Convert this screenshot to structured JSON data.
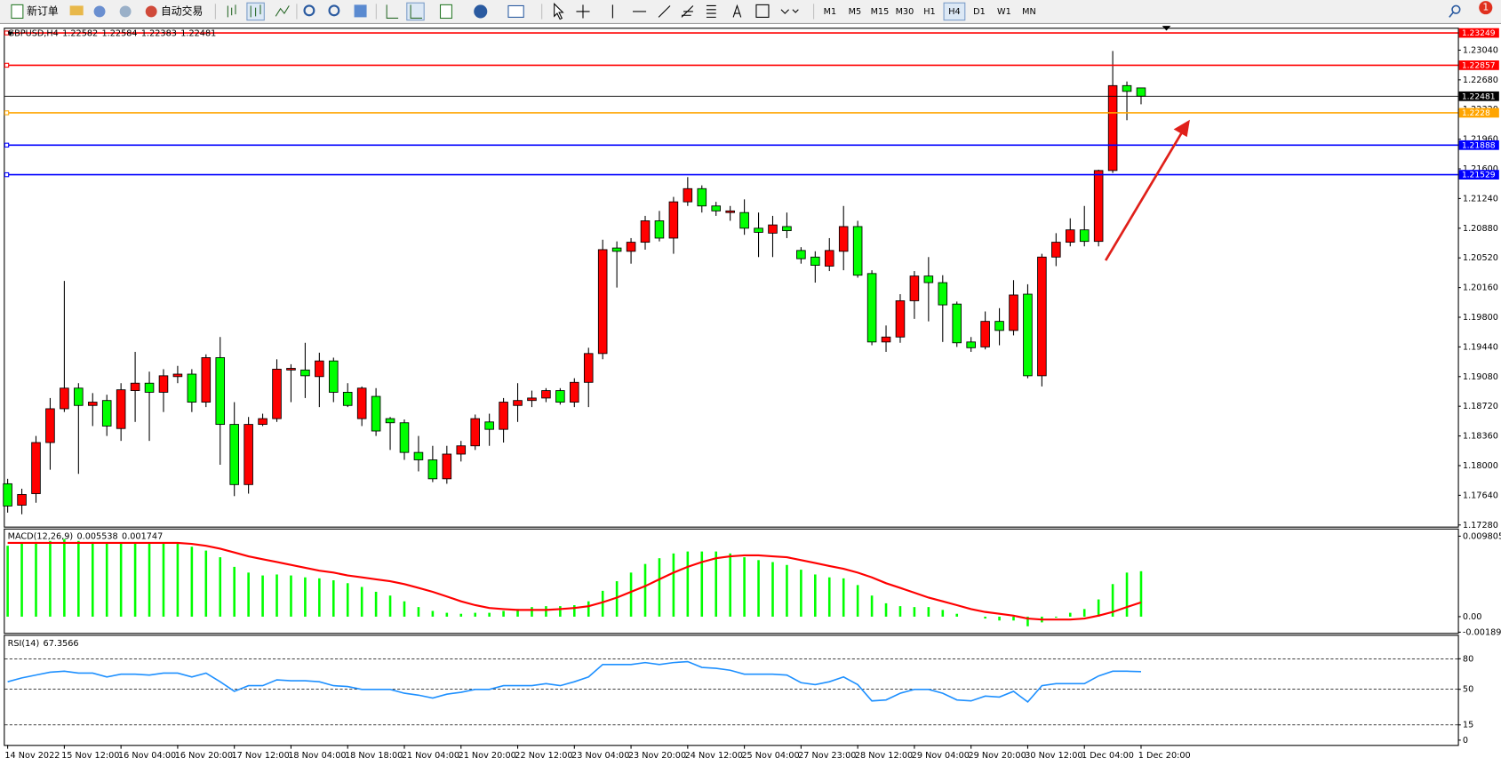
{
  "toolbar": {
    "buttons": [
      "新订单",
      "自动交易"
    ],
    "timeframes": [
      "M1",
      "M5",
      "M15",
      "M30",
      "H1",
      "H4",
      "D1",
      "W1",
      "MN"
    ],
    "active_timeframe": "H4",
    "notifications": 1
  },
  "chart_data": [
    {
      "type": "candlestick",
      "title": "GBPUSD,H4",
      "categories": [
        "14 Nov 2022",
        null,
        null,
        null,
        "15 Nov 12:00",
        null,
        null,
        null,
        "16 Nov 04:00",
        null,
        null,
        null,
        "16 Nov 20:00",
        null,
        null,
        null,
        "17 Nov 12:00",
        null,
        null,
        null,
        "18 Nov 04:00",
        null,
        null,
        null,
        "18 Nov 18:00",
        null,
        null,
        null,
        "21 Nov 04:00",
        null,
        null,
        null,
        "21 Nov 20:00",
        null,
        null,
        null,
        "22 Nov 12:00",
        null,
        null,
        null,
        "23 Nov 04:00",
        null,
        null,
        null,
        "23 Nov 20:00",
        null,
        null,
        null,
        "24 Nov 12:00",
        null,
        null,
        null,
        "25 Nov 04:00",
        null,
        null,
        null,
        "27 Nov 23:00",
        null,
        null,
        null,
        "28 Nov 12:00",
        null,
        null,
        null,
        "29 Nov 04:00",
        null,
        null,
        null,
        "29 Nov 20:00",
        null,
        null,
        null,
        "30 Nov 12:00",
        null,
        null,
        null,
        "1 Dec 04:00",
        null,
        null,
        null,
        "1 Dec 20:00"
      ],
      "open": [
        1.1778,
        1.1752,
        1.1766,
        1.1828,
        1.1869,
        1.1894,
        1.1873,
        1.1879,
        1.1845,
        1.1891,
        1.19,
        1.1889,
        1.1908,
        1.1911,
        1.1877,
        1.1931,
        1.185,
        1.1777,
        1.185,
        1.1857,
        1.1916,
        1.1916,
        1.1908,
        1.1927,
        1.1889,
        1.1857,
        1.1884,
        1.1857,
        1.1852,
        1.1816,
        1.1807,
        1.1784,
        1.1814,
        1.1824,
        1.1853,
        1.1844,
        1.1873,
        1.1879,
        1.1882,
        1.1891,
        1.1877,
        1.1901,
        1.1936,
        1.2064,
        1.206,
        1.2071,
        1.2097,
        1.2076,
        1.212,
        1.2136,
        1.2115,
        1.2107,
        1.2107,
        1.2088,
        1.2082,
        1.209,
        1.2061,
        1.2053,
        1.2042,
        1.206,
        1.209,
        1.2033,
        1.195,
        1.1956,
        1.2,
        1.203,
        1.2022,
        1.1996,
        1.195,
        1.1944,
        1.1975,
        1.1964,
        1.2008,
        1.1909,
        1.2053,
        1.2071,
        1.2086,
        1.2072,
        1.2158,
        1.2261,
        1.22582
      ],
      "high": [
        1.1784,
        1.1772,
        1.1836,
        1.1882,
        1.2024,
        1.19,
        1.1888,
        1.1886,
        1.19,
        1.1938,
        1.1914,
        1.1917,
        1.1921,
        1.1917,
        1.1935,
        1.1956,
        1.1877,
        1.1859,
        1.1863,
        1.1929,
        1.1923,
        1.1949,
        1.1937,
        1.1931,
        1.19,
        1.1896,
        1.1894,
        1.1859,
        1.1856,
        1.1836,
        1.1824,
        1.1824,
        1.183,
        1.1862,
        1.1863,
        1.1882,
        1.19,
        1.1891,
        1.1894,
        1.1894,
        1.1906,
        1.1943,
        1.2074,
        1.2072,
        1.2076,
        1.2103,
        1.2109,
        1.2126,
        1.215,
        1.214,
        1.212,
        1.2115,
        1.2123,
        1.2107,
        1.2103,
        1.2107,
        1.2065,
        1.206,
        1.2076,
        1.2115,
        1.2097,
        1.2037,
        1.197,
        1.2008,
        1.2036,
        1.2053,
        1.2031,
        1.1999,
        1.1956,
        1.1987,
        1.1991,
        1.2025,
        1.202,
        1.2057,
        1.2082,
        1.21,
        1.2115,
        1.2159,
        1.2303,
        1.2266,
        1.22584
      ],
      "low": [
        1.1743,
        1.1741,
        1.1755,
        1.1795,
        1.1865,
        1.179,
        1.1848,
        1.1836,
        1.183,
        1.1853,
        1.183,
        1.1865,
        1.19,
        1.1865,
        1.1871,
        1.1801,
        1.1763,
        1.1766,
        1.1848,
        1.1853,
        1.1877,
        1.1882,
        1.1871,
        1.1877,
        1.1871,
        1.1848,
        1.1836,
        1.1819,
        1.1807,
        1.1793,
        1.178,
        1.1778,
        1.1805,
        1.1819,
        1.1824,
        1.1828,
        1.1853,
        1.1871,
        1.1877,
        1.1874,
        1.1871,
        1.1871,
        1.1929,
        1.2016,
        1.2045,
        1.2062,
        1.2072,
        1.2057,
        1.2115,
        1.2107,
        1.2103,
        1.2097,
        1.208,
        1.2053,
        1.2053,
        1.2076,
        1.2045,
        1.2022,
        1.2036,
        1.2037,
        1.2028,
        1.1946,
        1.1938,
        1.1949,
        1.1978,
        1.1975,
        1.195,
        1.1944,
        1.1938,
        1.1941,
        1.1946,
        1.1958,
        1.1906,
        1.1896,
        1.2042,
        1.2066,
        1.2066,
        1.2066,
        1.2155,
        1.2219,
        1.22383
      ],
      "close": [
        1.1751,
        1.1765,
        1.1828,
        1.1869,
        1.1894,
        1.1873,
        1.1877,
        1.1848,
        1.1892,
        1.19,
        1.1889,
        1.1909,
        1.1911,
        1.1877,
        1.1931,
        1.185,
        1.1777,
        1.185,
        1.1857,
        1.1917,
        1.1918,
        1.1909,
        1.1927,
        1.1889,
        1.1873,
        1.1894,
        1.1842,
        1.1852,
        1.1816,
        1.1807,
        1.1784,
        1.1814,
        1.1824,
        1.1857,
        1.1844,
        1.1877,
        1.1879,
        1.1882,
        1.1891,
        1.1877,
        1.1901,
        1.1936,
        1.2062,
        1.206,
        1.2071,
        1.2097,
        1.2076,
        1.212,
        1.2136,
        1.2115,
        1.2109,
        1.2109,
        1.2088,
        1.2083,
        1.2092,
        1.2085,
        1.2051,
        1.2043,
        1.2061,
        1.209,
        1.2031,
        1.195,
        1.1956,
        1.2,
        1.203,
        1.2022,
        1.1995,
        1.1949,
        1.1943,
        1.1975,
        1.1964,
        1.2007,
        1.1909,
        1.2053,
        1.2071,
        1.2086,
        1.2072,
        1.2158,
        1.2261,
        1.2254,
        1.22481
      ],
      "up_color": "#ff0000",
      "down_color": "#00ff00",
      "bid_line_color": "#000000",
      "price_lines": [
        {
          "value": 1.23249,
          "color": "#ff0000"
        },
        {
          "value": 1.22857,
          "color": "#ff0000"
        },
        {
          "value": 1.2228,
          "color": "#ffa500"
        },
        {
          "value": 1.21888,
          "color": "#0000ff"
        },
        {
          "value": 1.21529,
          "color": "#0000ff"
        }
      ],
      "ylim": [
        1.1726,
        1.233
      ],
      "yticks": [
        {
          "value": 1.1728,
          "label": "1.17280"
        },
        {
          "value": 1.1764,
          "label": "1.17640"
        },
        {
          "value": 1.18,
          "label": "1.18000"
        },
        {
          "value": 1.1836,
          "label": "1.18360"
        },
        {
          "value": 1.1872,
          "label": "1.18720"
        },
        {
          "value": 1.1908,
          "label": "1.19080"
        },
        {
          "value": 1.1944,
          "label": "1.19440"
        },
        {
          "value": 1.198,
          "label": "1.19800"
        },
        {
          "value": 1.2016,
          "label": "1.20160"
        },
        {
          "value": 1.2052,
          "label": "1.20520"
        },
        {
          "value": 1.2088,
          "label": "1.20880"
        },
        {
          "value": 1.2124,
          "label": "1.21240"
        },
        {
          "value": 1.216,
          "label": "1.21600"
        },
        {
          "value": 1.2196,
          "label": "1.21960"
        },
        {
          "value": 1.2232,
          "label": "1.22320"
        },
        {
          "value": 1.2268,
          "label": "1.22680"
        },
        {
          "value": 1.2304,
          "label": "1.23040"
        }
      ]
    },
    {
      "type": "macd",
      "title": "MACD(12,26,9)",
      "series": [
        {
          "color": "#00ff00",
          "values": [
            0.00864,
            0.00899,
            0.0091,
            0.00922,
            0.00945,
            0.00922,
            0.0091,
            0.00899,
            0.00899,
            0.00887,
            0.00887,
            0.00887,
            0.00887,
            0.00852,
            0.00805,
            0.00724,
            0.00607,
            0.00537,
            0.00502,
            0.00514,
            0.00502,
            0.00479,
            0.00467,
            0.00443,
            0.00408,
            0.00362,
            0.00303,
            0.00257,
            0.00187,
            0.00117,
            0.0007,
            0.00047,
            0.00035,
            0.00047,
            0.00047,
            0.0007,
            0.00093,
            0.00117,
            0.00128,
            0.00128,
            0.0014,
            0.00187,
            0.00315,
            0.00432,
            0.00537,
            0.00642,
            0.00712,
            0.0077,
            0.00794,
            0.00794,
            0.00794,
            0.0077,
            0.00724,
            0.00689,
            0.00665,
            0.0063,
            0.00572,
            0.00514,
            0.00479,
            0.00467,
            0.00385,
            0.00257,
            0.00163,
            0.00128,
            0.00117,
            0.00117,
            0.00082,
            0.00035,
            0,
            -0.00023,
            -0.00047,
            -0.00047,
            -0.00117,
            -0.0007,
            -0.00012,
            0.00047,
            0.00093,
            0.0021,
            0.00397,
            0.00537,
            0.005538
          ]
        },
        {
          "color": "#ff0000",
          "values": [
            0.00899,
            0.00899,
            0.00899,
            0.00899,
            0.00899,
            0.00899,
            0.00899,
            0.00899,
            0.00899,
            0.00899,
            0.00899,
            0.00899,
            0.00899,
            0.00887,
            0.00864,
            0.00829,
            0.00782,
            0.00735,
            0.007,
            0.00665,
            0.0063,
            0.00595,
            0.0056,
            0.00537,
            0.00502,
            0.00479,
            0.00455,
            0.00432,
            0.00397,
            0.0035,
            0.00303,
            0.00245,
            0.00187,
            0.0014,
            0.00105,
            0.00093,
            0.00082,
            0.00082,
            0.00082,
            0.00093,
            0.00105,
            0.00128,
            0.00175,
            0.00233,
            0.00303,
            0.00373,
            0.00455,
            0.00537,
            0.00607,
            0.00665,
            0.00712,
            0.00735,
            0.00747,
            0.00747,
            0.00735,
            0.00724,
            0.00689,
            0.00654,
            0.00618,
            0.00584,
            0.00537,
            0.00479,
            0.00408,
            0.0035,
            0.00292,
            0.00233,
            0.00187,
            0.0014,
            0.00093,
            0.00058,
            0.00035,
            0.00012,
            -0.00023,
            -0.00035,
            -0.00035,
            -0.00035,
            -0.00023,
            0.00012,
            0.00058,
            0.00117,
            0.001747
          ]
        }
      ],
      "ylim": [
        -0.00198,
        0.01062
      ],
      "yticks": [
        0.009805,
        {
          "value": 0,
          "label": "0.00"
        },
        -0.001891
      ]
    },
    {
      "type": "rsi",
      "title": "RSI(14)",
      "color": "#1e90ff",
      "values": [
        57.4,
        61.2,
        64.0,
        66.8,
        67.8,
        65.9,
        65.9,
        62.1,
        64.9,
        64.9,
        64.0,
        65.9,
        65.9,
        62.1,
        65.9,
        57.4,
        48.0,
        53.6,
        53.6,
        59.3,
        58.4,
        58.4,
        57.4,
        53.6,
        52.7,
        49.9,
        49.9,
        49.9,
        46.1,
        44.2,
        41.4,
        45.2,
        47.1,
        49.9,
        49.9,
        53.6,
        53.6,
        53.6,
        55.5,
        53.6,
        57.4,
        62.1,
        74.4,
        74.4,
        74.4,
        76.2,
        74.4,
        76.2,
        77.2,
        71.5,
        70.6,
        68.7,
        64.9,
        64.9,
        64.9,
        64.0,
        56.5,
        54.6,
        57.4,
        62.1,
        54.6,
        38.6,
        39.5,
        46.1,
        49.9,
        49.9,
        46.1,
        39.5,
        38.6,
        43.3,
        42.4,
        48.0,
        37.6,
        53.6,
        55.5,
        55.5,
        55.5,
        63.1,
        67.8,
        67.8,
        67.3566
      ],
      "levels": [
        80,
        50,
        15
      ],
      "ylim": [
        -4.7,
        102.6
      ],
      "yticks": [
        80,
        50,
        15,
        0
      ]
    }
  ]
}
